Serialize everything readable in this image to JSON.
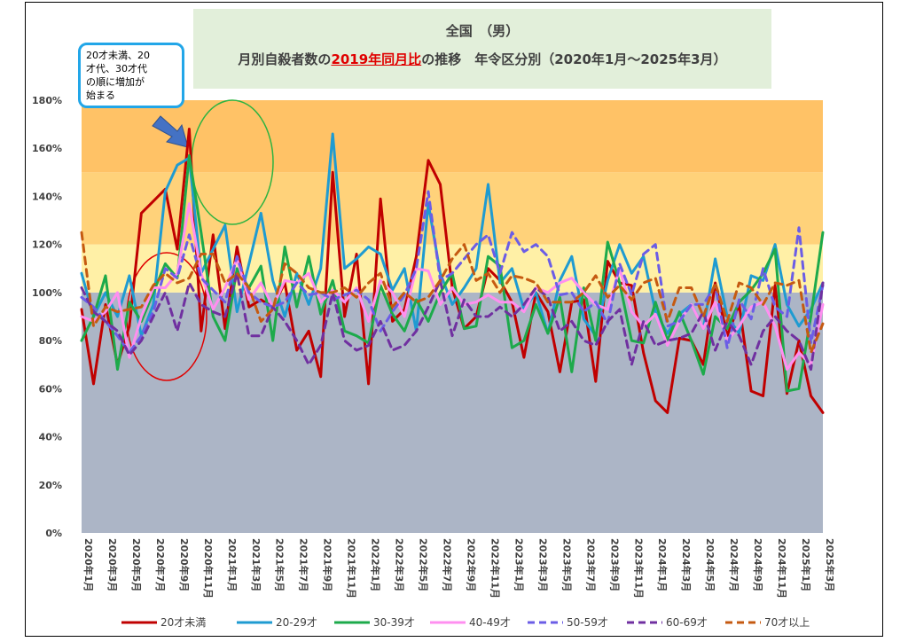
{
  "title": {
    "line1": "全国　（男）",
    "line2_pre": "月別自殺者数の",
    "line2_highlight": "2019年同月比",
    "line2_post": "の推移　年令区分別（2020年1月～2025年3月）"
  },
  "callout": {
    "lines": [
      "20才未満、20",
      "才代、30才代",
      "の順に増加が",
      "始まる"
    ]
  },
  "colors": {
    "plot_bg": "#acb5c6",
    "band_100_120": "#fff0a6",
    "band_120_150": "#ffd27a",
    "band_150_180": "#ffc266",
    "arrow": "#4472c4",
    "circle_green": "#2db341",
    "circle_red": "#e00000"
  },
  "chart_data": {
    "type": "line",
    "ylim": [
      0,
      180
    ],
    "yticks": [
      "0%",
      "20%",
      "40%",
      "60%",
      "80%",
      "100%",
      "120%",
      "140%",
      "160%",
      "180%"
    ],
    "ytick_values": [
      0,
      20,
      40,
      60,
      80,
      100,
      120,
      140,
      160,
      180
    ],
    "bands": [
      {
        "from": 100,
        "to": 120,
        "color": "#fff0a6"
      },
      {
        "from": 120,
        "to": 150,
        "color": "#ffd27a"
      },
      {
        "from": 150,
        "to": 180,
        "color": "#ffc266"
      }
    ],
    "x_labels": [
      "2020年1月",
      "2020年3月",
      "2020年5月",
      "2020年7月",
      "2020年9月",
      "2020年11月",
      "2021年1月",
      "2021年3月",
      "2021年5月",
      "2021年7月",
      "2021年9月",
      "2021年11月",
      "2022年1月",
      "2022年3月",
      "2022年5月",
      "2022年7月",
      "2022年9月",
      "2022年11月",
      "2023年1月",
      "2023年3月",
      "2023年5月",
      "2023年7月",
      "2023年9月",
      "2023年11月",
      "2024年1月",
      "2024年3月",
      "2024年5月",
      "2024年7月",
      "2024年9月",
      "2024年11月",
      "2025年1月",
      "2025年3月"
    ],
    "legend_position": "bottom",
    "series": [
      {
        "name": "20才未満",
        "color": "#c00000",
        "dash": "solid",
        "values": [
          93,
          62,
          95,
          70,
          86,
          133,
          138,
          143,
          118,
          168,
          84,
          124,
          85,
          119,
          94,
          97,
          94,
          104,
          76,
          84,
          65,
          150,
          90,
          116,
          62,
          139,
          88,
          93,
          115,
          155,
          145,
          102,
          85,
          90,
          110,
          105,
          96,
          73,
          100,
          92,
          67,
          96,
          97,
          63,
          113,
          104,
          103,
          75,
          55,
          50,
          81,
          80,
          70,
          104,
          82,
          95,
          59,
          57,
          103,
          58,
          80,
          57,
          50
        ]
      },
      {
        "name": "20-29才",
        "color": "#1f9bd1",
        "dash": "solid",
        "values": [
          108,
          90,
          100,
          90,
          107,
          82,
          95,
          142,
          153,
          156,
          108,
          118,
          128,
          92,
          112,
          133,
          105,
          90,
          108,
          95,
          110,
          166,
          110,
          114,
          119,
          116,
          101,
          110,
          84,
          137,
          108,
          95,
          102,
          110,
          145,
          104,
          110,
          93,
          100,
          83,
          105,
          115,
          89,
          82,
          105,
          120,
          108,
          115,
          92,
          83,
          91,
          95,
          85,
          114,
          90,
          83,
          107,
          105,
          120,
          95,
          86,
          93,
          104
        ]
      },
      {
        "name": "30-39才",
        "color": "#1daa4b",
        "dash": "solid",
        "values": [
          80,
          90,
          107,
          68,
          96,
          88,
          100,
          112,
          106,
          157,
          125,
          90,
          80,
          110,
          102,
          111,
          80,
          119,
          94,
          115,
          91,
          105,
          84,
          82,
          79,
          103,
          91,
          84,
          97,
          88,
          100,
          108,
          85,
          86,
          115,
          111,
          77,
          80,
          95,
          83,
          98,
          67,
          102,
          80,
          121,
          104,
          80,
          79,
          96,
          80,
          92,
          80,
          66,
          90,
          85,
          96,
          101,
          108,
          118,
          59,
          60,
          90,
          125
        ]
      },
      {
        "name": "40-49才",
        "color": "#ff8ff0",
        "dash": "solid",
        "values": [
          90,
          88,
          92,
          100,
          73,
          90,
          102,
          102,
          108,
          137,
          108,
          93,
          102,
          114,
          97,
          104,
          94,
          105,
          104,
          108,
          96,
          101,
          96,
          102,
          88,
          105,
          100,
          90,
          110,
          109,
          95,
          102,
          95,
          96,
          99,
          96,
          96,
          92,
          102,
          100,
          104,
          106,
          100,
          95,
          93,
          110,
          92,
          86,
          91,
          78,
          88,
          95,
          85,
          96,
          80,
          86,
          94,
          96,
          86,
          68,
          75,
          70,
          95
        ]
      },
      {
        "name": "50-59才",
        "color": "#6b5de6",
        "dash": "dash",
        "values": [
          98,
          94,
          88,
          82,
          75,
          82,
          92,
          110,
          106,
          124,
          106,
          101,
          96,
          115,
          100,
          96,
          94,
          96,
          104,
          99,
          100,
          97,
          99,
          101,
          97,
          84,
          92,
          99,
          110,
          142,
          105,
          108,
          114,
          120,
          124,
          108,
          125,
          117,
          120,
          115,
          99,
          100,
          92,
          96,
          87,
          112,
          99,
          116,
          120,
          86,
          88,
          95,
          95,
          103,
          77,
          97,
          89,
          110,
          94,
          90,
          127,
          79,
          103
        ]
      },
      {
        "name": "60-69才",
        "color": "#7030a0",
        "dash": "dash",
        "values": [
          102,
          92,
          88,
          84,
          74,
          80,
          90,
          100,
          84,
          104,
          95,
          92,
          90,
          108,
          82,
          82,
          94,
          88,
          80,
          70,
          78,
          100,
          80,
          76,
          78,
          88,
          76,
          78,
          84,
          94,
          105,
          82,
          97,
          90,
          90,
          94,
          90,
          95,
          102,
          98,
          84,
          88,
          80,
          78,
          88,
          93,
          70,
          88,
          78,
          80,
          81,
          83,
          92,
          76,
          88,
          82,
          70,
          84,
          90,
          84,
          80,
          68,
          104
        ]
      },
      {
        "name": "70才以上",
        "color": "#c55a11",
        "dash": "dash",
        "values": [
          125,
          86,
          94,
          92,
          93,
          94,
          103,
          108,
          104,
          106,
          116,
          116,
          104,
          108,
          102,
          88,
          93,
          112,
          108,
          102,
          100,
          100,
          102,
          98,
          104,
          108,
          94,
          100,
          96,
          98,
          105,
          114,
          120,
          105,
          108,
          100,
          107,
          106,
          104,
          96,
          96,
          96,
          100,
          107,
          98,
          103,
          97,
          104,
          106,
          88,
          102,
          102,
          90,
          104,
          88,
          104,
          102,
          95,
          104,
          103,
          105,
          75,
          87
        ]
      }
    ]
  },
  "legend": [
    {
      "label": "20才未満"
    },
    {
      "label": "20-29才"
    },
    {
      "label": "30-39才"
    },
    {
      "label": "40-49才"
    },
    {
      "label": "50-59才"
    },
    {
      "label": "60-69才"
    },
    {
      "label": "70才以上"
    }
  ]
}
